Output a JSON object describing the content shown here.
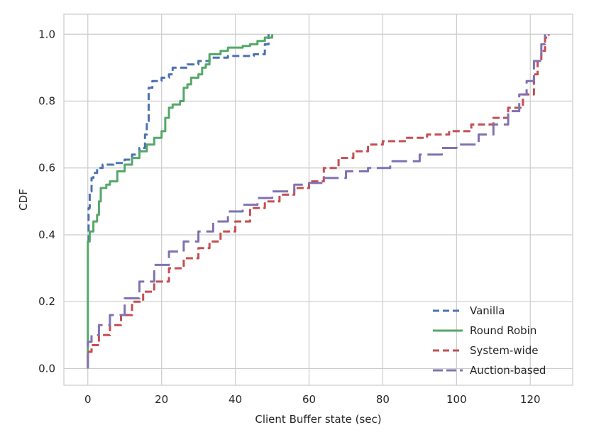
{
  "chart_data": {
    "type": "line",
    "xlabel": "Client Buffer state (sec)",
    "ylabel": "CDF",
    "xlim": [
      -6.5,
      131.5
    ],
    "ylim": [
      -0.05,
      1.06
    ],
    "xticks": [
      0,
      20,
      40,
      60,
      80,
      100,
      120
    ],
    "yticks": [
      0.0,
      0.2,
      0.4,
      0.6,
      0.8,
      1.0
    ],
    "xtick_labels": [
      "0",
      "20",
      "40",
      "60",
      "80",
      "100",
      "120"
    ],
    "ytick_labels": [
      "0.0",
      "0.2",
      "0.4",
      "0.6",
      "0.8",
      "1.0"
    ],
    "grid": true,
    "legend_position": "lower-right",
    "series": [
      {
        "name": "Vanilla",
        "color": "#4c72b0",
        "dash": "dashed",
        "points": [
          [
            0,
            0.38
          ],
          [
            0.2,
            0.48
          ],
          [
            0.5,
            0.53
          ],
          [
            1,
            0.57
          ],
          [
            1.5,
            0.585
          ],
          [
            2.5,
            0.6
          ],
          [
            4,
            0.61
          ],
          [
            7,
            0.615
          ],
          [
            10,
            0.625
          ],
          [
            12,
            0.64
          ],
          [
            14,
            0.66
          ],
          [
            15.5,
            0.7
          ],
          [
            16,
            0.74
          ],
          [
            16.5,
            0.84
          ],
          [
            17.5,
            0.86
          ],
          [
            20,
            0.87
          ],
          [
            22,
            0.88
          ],
          [
            23,
            0.9
          ],
          [
            27,
            0.91
          ],
          [
            30,
            0.92
          ],
          [
            33,
            0.93
          ],
          [
            38,
            0.935
          ],
          [
            45,
            0.94
          ],
          [
            48,
            0.97
          ],
          [
            49,
            1.0
          ]
        ]
      },
      {
        "name": "Round Robin",
        "color": "#55a868",
        "dash": "solid",
        "points": [
          [
            0,
            0.0
          ],
          [
            0,
            0.38
          ],
          [
            0.5,
            0.41
          ],
          [
            1.5,
            0.44
          ],
          [
            2.5,
            0.46
          ],
          [
            3,
            0.5
          ],
          [
            3.5,
            0.54
          ],
          [
            5,
            0.55
          ],
          [
            6,
            0.56
          ],
          [
            8,
            0.59
          ],
          [
            10,
            0.61
          ],
          [
            12,
            0.63
          ],
          [
            14,
            0.65
          ],
          [
            16,
            0.67
          ],
          [
            18,
            0.69
          ],
          [
            20,
            0.71
          ],
          [
            21,
            0.75
          ],
          [
            22,
            0.78
          ],
          [
            23,
            0.79
          ],
          [
            25,
            0.8
          ],
          [
            26,
            0.84
          ],
          [
            27,
            0.85
          ],
          [
            28,
            0.87
          ],
          [
            30,
            0.88
          ],
          [
            31,
            0.9
          ],
          [
            32,
            0.91
          ],
          [
            33,
            0.94
          ],
          [
            36,
            0.95
          ],
          [
            38,
            0.96
          ],
          [
            42,
            0.965
          ],
          [
            44,
            0.97
          ],
          [
            46,
            0.98
          ],
          [
            48,
            0.99
          ],
          [
            50,
            1.0
          ]
        ]
      },
      {
        "name": "System-wide",
        "color": "#c44e52",
        "dash": "dashed",
        "points": [
          [
            0,
            0.05
          ],
          [
            1,
            0.07
          ],
          [
            3,
            0.1
          ],
          [
            6,
            0.13
          ],
          [
            9,
            0.16
          ],
          [
            12,
            0.2
          ],
          [
            15,
            0.23
          ],
          [
            18,
            0.26
          ],
          [
            22,
            0.3
          ],
          [
            26,
            0.33
          ],
          [
            30,
            0.36
          ],
          [
            33,
            0.38
          ],
          [
            36,
            0.41
          ],
          [
            40,
            0.44
          ],
          [
            44,
            0.48
          ],
          [
            48,
            0.5
          ],
          [
            52,
            0.52
          ],
          [
            56,
            0.54
          ],
          [
            60,
            0.56
          ],
          [
            64,
            0.6
          ],
          [
            68,
            0.63
          ],
          [
            72,
            0.65
          ],
          [
            76,
            0.67
          ],
          [
            80,
            0.68
          ],
          [
            86,
            0.69
          ],
          [
            92,
            0.7
          ],
          [
            98,
            0.71
          ],
          [
            104,
            0.73
          ],
          [
            110,
            0.75
          ],
          [
            114,
            0.78
          ],
          [
            118,
            0.82
          ],
          [
            121,
            0.88
          ],
          [
            122,
            0.92
          ],
          [
            123,
            0.95
          ],
          [
            124,
            0.99
          ],
          [
            125,
            1.0
          ]
        ]
      },
      {
        "name": "Auction-based",
        "color": "#8172b2",
        "dash": "long-dashed",
        "points": [
          [
            0,
            0.0
          ],
          [
            0,
            0.08
          ],
          [
            1,
            0.1
          ],
          [
            3,
            0.13
          ],
          [
            6,
            0.16
          ],
          [
            10,
            0.21
          ],
          [
            14,
            0.26
          ],
          [
            18,
            0.31
          ],
          [
            22,
            0.35
          ],
          [
            26,
            0.38
          ],
          [
            30,
            0.41
          ],
          [
            34,
            0.44
          ],
          [
            38,
            0.47
          ],
          [
            42,
            0.49
          ],
          [
            46,
            0.51
          ],
          [
            50,
            0.53
          ],
          [
            56,
            0.55
          ],
          [
            60,
            0.555
          ],
          [
            64,
            0.57
          ],
          [
            70,
            0.59
          ],
          [
            76,
            0.6
          ],
          [
            82,
            0.62
          ],
          [
            90,
            0.64
          ],
          [
            96,
            0.66
          ],
          [
            100,
            0.67
          ],
          [
            106,
            0.7
          ],
          [
            110,
            0.73
          ],
          [
            114,
            0.77
          ],
          [
            117,
            0.82
          ],
          [
            119,
            0.86
          ],
          [
            121,
            0.92
          ],
          [
            123,
            0.97
          ],
          [
            124,
            1.0
          ]
        ]
      }
    ]
  }
}
